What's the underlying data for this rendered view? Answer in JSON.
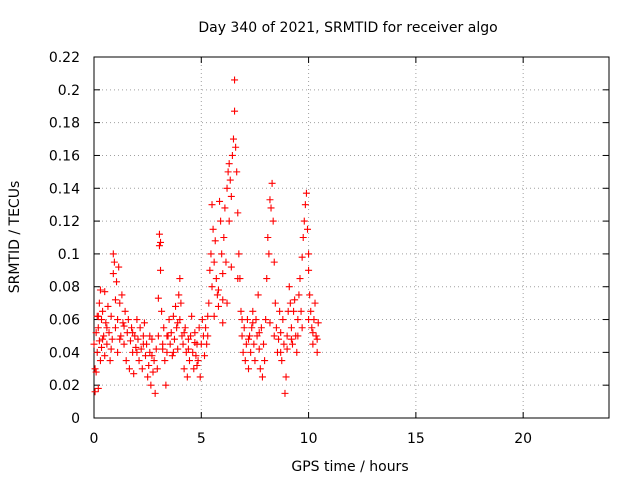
{
  "chart_data": {
    "type": "scatter",
    "title": "Day 340 of 2021, SRMTID for receiver algo",
    "xlabel": "GPS time / hours",
    "ylabel": "SRMTID / TECUs",
    "xlim": [
      0,
      24
    ],
    "ylim": [
      0,
      0.22
    ],
    "xticks": [
      0,
      5,
      10,
      15,
      20
    ],
    "xtick_labels": [
      "0",
      "5",
      "10",
      "15",
      "20"
    ],
    "yticks": [
      0,
      0.02,
      0.04,
      0.06,
      0.08,
      0.1,
      0.12,
      0.14,
      0.16,
      0.18,
      0.2,
      0.22
    ],
    "ytick_labels": [
      "0",
      "0.02",
      "0.04",
      "0.06",
      "0.08",
      "0.1",
      "0.12",
      "0.14",
      "0.16",
      "0.18",
      "0.2",
      "0.22"
    ],
    "grid": true,
    "marker": "+",
    "color": "#ff0000",
    "series": [
      {
        "name": "SRMTID",
        "points": [
          [
            0.0,
            0.045
          ],
          [
            0.05,
            0.03
          ],
          [
            0.05,
            0.016
          ],
          [
            0.1,
            0.052
          ],
          [
            0.1,
            0.028
          ],
          [
            0.15,
            0.062
          ],
          [
            0.15,
            0.04
          ],
          [
            0.2,
            0.018
          ],
          [
            0.2,
            0.055
          ],
          [
            0.25,
            0.07
          ],
          [
            0.25,
            0.047
          ],
          [
            0.3,
            0.078
          ],
          [
            0.3,
            0.035
          ],
          [
            0.35,
            0.06
          ],
          [
            0.35,
            0.043
          ],
          [
            0.4,
            0.065
          ],
          [
            0.45,
            0.05
          ],
          [
            0.5,
            0.077
          ],
          [
            0.5,
            0.038
          ],
          [
            0.55,
            0.058
          ],
          [
            0.6,
            0.045
          ],
          [
            0.65,
            0.068
          ],
          [
            0.7,
            0.052
          ],
          [
            0.75,
            0.035
          ],
          [
            0.8,
            0.062
          ],
          [
            0.85,
            0.048
          ],
          [
            0.9,
            0.1
          ],
          [
            0.9,
            0.088
          ],
          [
            0.95,
            0.095
          ],
          [
            1.0,
            0.072
          ],
          [
            1.0,
            0.055
          ],
          [
            1.05,
            0.083
          ],
          [
            1.1,
            0.06
          ],
          [
            1.1,
            0.04
          ],
          [
            1.15,
            0.092
          ],
          [
            1.2,
            0.07
          ],
          [
            1.25,
            0.05
          ],
          [
            1.3,
            0.075
          ],
          [
            1.35,
            0.058
          ],
          [
            1.4,
            0.045
          ],
          [
            1.45,
            0.065
          ],
          [
            1.5,
            0.035
          ],
          [
            1.55,
            0.052
          ],
          [
            1.6,
            0.06
          ],
          [
            1.65,
            0.03
          ],
          [
            1.7,
            0.047
          ],
          [
            1.75,
            0.055
          ],
          [
            1.8,
            0.04
          ],
          [
            1.85,
            0.027
          ],
          [
            1.9,
            0.05
          ],
          [
            1.95,
            0.043
          ],
          [
            2.0,
            0.06
          ],
          [
            2.05,
            0.048
          ],
          [
            2.1,
            0.035
          ],
          [
            2.15,
            0.055
          ],
          [
            2.2,
            0.042
          ],
          [
            2.25,
            0.03
          ],
          [
            2.3,
            0.05
          ],
          [
            2.35,
            0.058
          ],
          [
            2.4,
            0.038
          ],
          [
            2.45,
            0.045
          ],
          [
            2.5,
            0.025
          ],
          [
            2.55,
            0.032
          ],
          [
            2.6,
            0.04
          ],
          [
            2.65,
            0.02
          ],
          [
            2.7,
            0.048
          ],
          [
            2.75,
            0.028
          ],
          [
            2.8,
            0.035
          ],
          [
            2.85,
            0.015
          ],
          [
            2.9,
            0.042
          ],
          [
            2.95,
            0.03
          ],
          [
            3.0,
            0.05
          ],
          [
            3.0,
            0.073
          ],
          [
            3.05,
            0.112
          ],
          [
            3.05,
            0.105
          ],
          [
            3.1,
            0.107
          ],
          [
            3.1,
            0.09
          ],
          [
            3.15,
            0.065
          ],
          [
            3.2,
            0.045
          ],
          [
            3.25,
            0.055
          ],
          [
            3.3,
            0.035
          ],
          [
            3.35,
            0.02
          ],
          [
            3.4,
            0.04
          ],
          [
            3.45,
            0.05
          ],
          [
            3.5,
            0.06
          ],
          [
            3.55,
            0.045
          ],
          [
            3.6,
            0.052
          ],
          [
            3.65,
            0.038
          ],
          [
            3.7,
            0.062
          ],
          [
            3.75,
            0.048
          ],
          [
            3.8,
            0.068
          ],
          [
            3.85,
            0.055
          ],
          [
            3.9,
            0.042
          ],
          [
            3.95,
            0.075
          ],
          [
            4.0,
            0.085
          ],
          [
            4.0,
            0.06
          ],
          [
            4.05,
            0.07
          ],
          [
            4.1,
            0.05
          ],
          [
            4.15,
            0.045
          ],
          [
            4.2,
            0.03
          ],
          [
            4.25,
            0.055
          ],
          [
            4.3,
            0.04
          ],
          [
            4.35,
            0.025
          ],
          [
            4.4,
            0.048
          ],
          [
            4.45,
            0.035
          ],
          [
            4.5,
            0.05
          ],
          [
            4.55,
            0.062
          ],
          [
            4.6,
            0.04
          ],
          [
            4.65,
            0.03
          ],
          [
            4.7,
            0.052
          ],
          [
            4.75,
            0.038
          ],
          [
            4.8,
            0.045
          ],
          [
            4.85,
            0.035
          ],
          [
            4.9,
            0.055
          ],
          [
            4.95,
            0.025
          ],
          [
            5.0,
            0.045
          ],
          [
            5.05,
            0.06
          ],
          [
            5.1,
            0.05
          ],
          [
            5.15,
            0.038
          ],
          [
            5.2,
            0.055
          ],
          [
            5.25,
            0.045
          ],
          [
            5.3,
            0.062
          ],
          [
            5.35,
            0.07
          ],
          [
            5.4,
            0.09
          ],
          [
            5.45,
            0.1
          ],
          [
            5.5,
            0.08
          ],
          [
            5.5,
            0.13
          ],
          [
            5.55,
            0.115
          ],
          [
            5.6,
            0.095
          ],
          [
            5.65,
            0.108
          ],
          [
            5.7,
            0.085
          ],
          [
            5.75,
            0.075
          ],
          [
            5.8,
            0.068
          ],
          [
            5.85,
            0.132
          ],
          [
            5.9,
            0.12
          ],
          [
            5.95,
            0.1
          ],
          [
            6.0,
            0.088
          ],
          [
            6.0,
            0.072
          ],
          [
            6.05,
            0.11
          ],
          [
            6.1,
            0.128
          ],
          [
            6.15,
            0.095
          ],
          [
            6.2,
            0.14
          ],
          [
            6.25,
            0.15
          ],
          [
            6.3,
            0.12
          ],
          [
            6.3,
            0.155
          ],
          [
            6.35,
            0.145
          ],
          [
            6.4,
            0.135
          ],
          [
            6.45,
            0.16
          ],
          [
            6.5,
            0.17
          ],
          [
            6.55,
            0.206
          ],
          [
            6.55,
            0.187
          ],
          [
            6.6,
            0.165
          ],
          [
            6.65,
            0.15
          ],
          [
            6.7,
            0.125
          ],
          [
            6.75,
            0.1
          ],
          [
            6.8,
            0.085
          ],
          [
            6.85,
            0.065
          ],
          [
            6.9,
            0.05
          ],
          [
            6.95,
            0.04
          ],
          [
            7.0,
            0.055
          ],
          [
            7.05,
            0.035
          ],
          [
            7.1,
            0.045
          ],
          [
            7.15,
            0.06
          ],
          [
            7.2,
            0.03
          ],
          [
            7.25,
            0.05
          ],
          [
            7.3,
            0.04
          ],
          [
            7.35,
            0.055
          ],
          [
            7.4,
            0.065
          ],
          [
            7.45,
            0.045
          ],
          [
            7.5,
            0.035
          ],
          [
            7.55,
            0.06
          ],
          [
            7.6,
            0.05
          ],
          [
            7.65,
            0.075
          ],
          [
            7.7,
            0.042
          ],
          [
            7.75,
            0.03
          ],
          [
            7.8,
            0.055
          ],
          [
            7.85,
            0.025
          ],
          [
            7.9,
            0.045
          ],
          [
            7.95,
            0.035
          ],
          [
            8.0,
            0.06
          ],
          [
            8.05,
            0.085
          ],
          [
            8.1,
            0.11
          ],
          [
            8.15,
            0.1
          ],
          [
            8.2,
            0.133
          ],
          [
            8.25,
            0.128
          ],
          [
            8.3,
            0.143
          ],
          [
            8.35,
            0.12
          ],
          [
            8.4,
            0.095
          ],
          [
            8.45,
            0.07
          ],
          [
            8.5,
            0.055
          ],
          [
            8.55,
            0.04
          ],
          [
            8.6,
            0.048
          ],
          [
            8.65,
            0.065
          ],
          [
            8.7,
            0.052
          ],
          [
            8.75,
            0.035
          ],
          [
            8.8,
            0.06
          ],
          [
            8.85,
            0.045
          ],
          [
            8.9,
            0.015
          ],
          [
            8.95,
            0.025
          ],
          [
            9.0,
            0.05
          ],
          [
            9.05,
            0.065
          ],
          [
            9.1,
            0.08
          ],
          [
            9.15,
            0.07
          ],
          [
            9.2,
            0.055
          ],
          [
            9.25,
            0.045
          ],
          [
            9.3,
            0.065
          ],
          [
            9.35,
            0.072
          ],
          [
            9.4,
            0.05
          ],
          [
            9.45,
            0.04
          ],
          [
            9.5,
            0.06
          ],
          [
            9.55,
            0.075
          ],
          [
            9.6,
            0.085
          ],
          [
            9.65,
            0.065
          ],
          [
            9.7,
            0.098
          ],
          [
            9.75,
            0.11
          ],
          [
            9.8,
            0.12
          ],
          [
            9.85,
            0.13
          ],
          [
            9.9,
            0.137
          ],
          [
            9.95,
            0.115
          ],
          [
            10.0,
            0.1
          ],
          [
            10.0,
            0.09
          ],
          [
            10.05,
            0.075
          ],
          [
            10.1,
            0.065
          ],
          [
            10.15,
            0.055
          ],
          [
            10.2,
            0.045
          ],
          [
            10.25,
            0.06
          ],
          [
            10.3,
            0.07
          ],
          [
            10.35,
            0.05
          ],
          [
            10.4,
            0.04
          ],
          [
            10.45,
            0.058
          ],
          [
            0.2,
            0.062
          ],
          [
            0.6,
            0.055
          ],
          [
            1.2,
            0.048
          ],
          [
            1.8,
            0.052
          ],
          [
            2.3,
            0.045
          ],
          [
            2.7,
            0.038
          ],
          [
            3.4,
            0.05
          ],
          [
            3.9,
            0.058
          ],
          [
            4.4,
            0.042
          ],
          [
            4.8,
            0.032
          ],
          [
            5.3,
            0.05
          ],
          [
            5.8,
            0.078
          ],
          [
            6.2,
            0.07
          ],
          [
            6.7,
            0.085
          ],
          [
            7.2,
            0.048
          ],
          [
            7.7,
            0.052
          ],
          [
            8.2,
            0.058
          ],
          [
            8.7,
            0.04
          ],
          [
            9.2,
            0.048
          ],
          [
            9.7,
            0.055
          ],
          [
            10.2,
            0.052
          ],
          [
            0.4,
            0.048
          ],
          [
            0.8,
            0.042
          ],
          [
            1.4,
            0.056
          ],
          [
            2.0,
            0.04
          ],
          [
            2.6,
            0.05
          ],
          [
            3.2,
            0.042
          ],
          [
            3.7,
            0.04
          ],
          [
            4.2,
            0.052
          ],
          [
            4.7,
            0.046
          ],
          [
            5.6,
            0.062
          ],
          [
            6.0,
            0.058
          ],
          [
            6.4,
            0.092
          ],
          [
            6.9,
            0.06
          ],
          [
            7.4,
            0.058
          ],
          [
            8.4,
            0.05
          ],
          [
            9.0,
            0.042
          ],
          [
            9.5,
            0.05
          ],
          [
            10.0,
            0.06
          ],
          [
            10.4,
            0.048
          ]
        ]
      }
    ]
  }
}
